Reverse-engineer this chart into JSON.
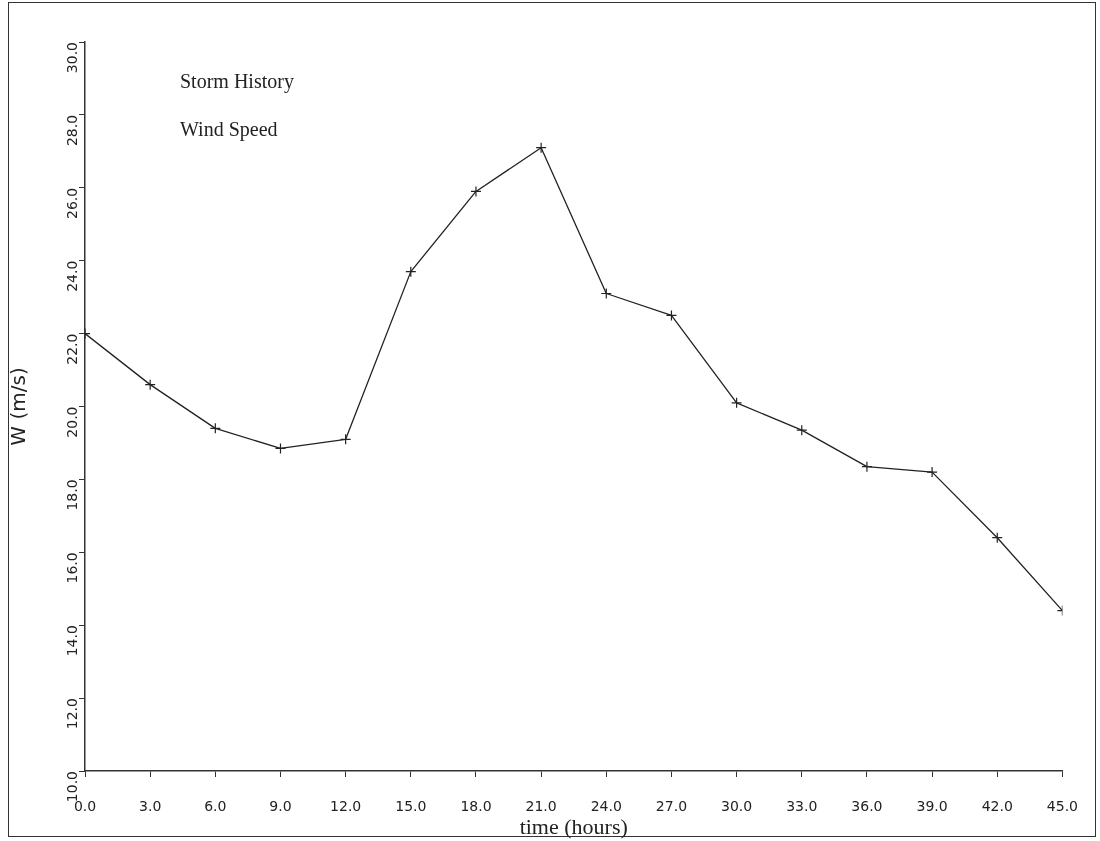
{
  "chart_data": {
    "type": "line",
    "title": "Storm History",
    "subtitle": "Wind Speed",
    "xlabel": "time (hours)",
    "ylabel": "W (m/s)",
    "x": [
      0,
      3,
      6,
      9,
      12,
      15,
      18,
      21,
      24,
      27,
      30,
      33,
      36,
      39,
      42,
      45
    ],
    "series": [
      {
        "color": "#222222",
        "values": [
          22.0,
          20.6,
          19.4,
          18.85,
          19.1,
          23.7,
          25.9,
          27.1,
          23.1,
          22.5,
          20.1,
          19.35,
          18.35,
          18.2,
          16.4,
          14.4
        ]
      }
    ],
    "xlim": [
      0,
      45
    ],
    "xticks": [
      {
        "value": 0,
        "label": "0.0"
      },
      {
        "value": 3,
        "label": "3.0"
      },
      {
        "value": 6,
        "label": "6.0"
      },
      {
        "value": 9,
        "label": "9.0"
      },
      {
        "value": 12,
        "label": "12.0"
      },
      {
        "value": 15,
        "label": "15.0"
      },
      {
        "value": 18,
        "label": "18.0"
      },
      {
        "value": 21,
        "label": "21.0"
      },
      {
        "value": 24,
        "label": "24.0"
      },
      {
        "value": 27,
        "label": "27.0"
      },
      {
        "value": 30,
        "label": "30.0"
      },
      {
        "value": 33,
        "label": "33.0"
      },
      {
        "value": 36,
        "label": "36.0"
      },
      {
        "value": 39,
        "label": "39.0"
      },
      {
        "value": 42,
        "label": "42.0"
      },
      {
        "value": 45,
        "label": "45.0"
      }
    ],
    "ylim": [
      10,
      30
    ],
    "yticks": [
      {
        "value": 10,
        "label": "10.0"
      },
      {
        "value": 12,
        "label": "12.0"
      },
      {
        "value": 14,
        "label": "14.0"
      },
      {
        "value": 16,
        "label": "16.0"
      },
      {
        "value": 18,
        "label": "18.0"
      },
      {
        "value": 20,
        "label": "20.0"
      },
      {
        "value": 22,
        "label": "22.0"
      },
      {
        "value": 24,
        "label": "24.0"
      },
      {
        "value": 26,
        "label": "26.0"
      },
      {
        "value": 28,
        "label": "28.0"
      },
      {
        "value": 30,
        "label": "30.0"
      }
    ],
    "grid": false,
    "legend": false,
    "marker": "cross",
    "line_style": "solid"
  }
}
